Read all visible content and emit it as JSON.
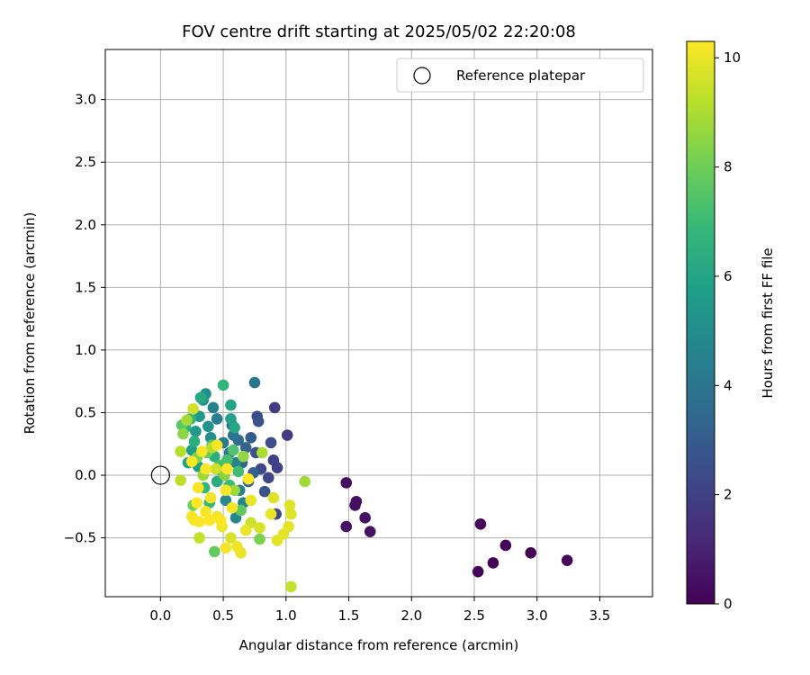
{
  "chart_data": {
    "type": "scatter",
    "title": "FOV centre drift starting at 2025/05/02 22:20:08",
    "xlabel": "Angular distance from reference (arcmin)",
    "ylabel": "Rotation from reference (arcmin)",
    "xlim": [
      -0.44,
      3.92
    ],
    "ylim": [
      -0.97,
      3.4
    ],
    "xticks": [
      0.0,
      0.5,
      1.0,
      1.5,
      2.0,
      2.5,
      3.0,
      3.5
    ],
    "xtick_labels": [
      "0.0",
      "0.5",
      "1.0",
      "1.5",
      "2.0",
      "2.5",
      "3.0",
      "3.5"
    ],
    "yticks": [
      -0.5,
      0.0,
      0.5,
      1.0,
      1.5,
      2.0,
      2.5,
      3.0
    ],
    "ytick_labels": [
      "−0.5",
      "0.0",
      "0.5",
      "1.0",
      "1.5",
      "2.0",
      "2.5",
      "3.0"
    ],
    "grid": true,
    "legend": {
      "position": "top-right",
      "entries": [
        "Reference platepar"
      ]
    },
    "reference_point": {
      "x": 0.0,
      "y": 0.0,
      "label": "Reference platepar"
    },
    "colorbar": {
      "label": "Hours from first FF file",
      "range": [
        0,
        10.3
      ],
      "ticks": [
        0,
        2,
        4,
        6,
        8,
        10
      ],
      "tick_labels": [
        "0",
        "2",
        "4",
        "6",
        "8",
        "10"
      ],
      "colormap": "viridis",
      "colors": [
        "#440154",
        "#482878",
        "#3e4989",
        "#31688e",
        "#26828e",
        "#1f9e89",
        "#35b779",
        "#6ece58",
        "#b5de2b",
        "#fde725"
      ]
    },
    "series": [
      {
        "points": [
          {
            "x": 2.55,
            "y": -0.39,
            "t": 0.1
          },
          {
            "x": 2.75,
            "y": -0.56,
            "t": 0.1
          },
          {
            "x": 2.95,
            "y": -0.62,
            "t": 0.1
          },
          {
            "x": 3.24,
            "y": -0.68,
            "t": 0.1
          },
          {
            "x": 2.65,
            "y": -0.7,
            "t": 0.1
          },
          {
            "x": 2.53,
            "y": -0.77,
            "t": 0.1
          },
          {
            "x": 1.48,
            "y": -0.06,
            "t": 0.4
          },
          {
            "x": 1.56,
            "y": -0.21,
            "t": 0.4
          },
          {
            "x": 1.55,
            "y": -0.24,
            "t": 0.4
          },
          {
            "x": 1.63,
            "y": -0.34,
            "t": 0.5
          },
          {
            "x": 1.48,
            "y": -0.41,
            "t": 0.5
          },
          {
            "x": 1.67,
            "y": -0.45,
            "t": 0.5
          },
          {
            "x": 0.91,
            "y": 0.54,
            "t": 1.8
          },
          {
            "x": 1.01,
            "y": 0.32,
            "t": 1.8
          },
          {
            "x": 0.9,
            "y": 0.12,
            "t": 2.0
          },
          {
            "x": 0.93,
            "y": 0.06,
            "t": 2.0
          },
          {
            "x": 0.86,
            "y": -0.02,
            "t": 2.2
          },
          {
            "x": 0.8,
            "y": 0.05,
            "t": 2.3
          },
          {
            "x": 0.92,
            "y": -0.31,
            "t": 2.3
          },
          {
            "x": 0.88,
            "y": 0.26,
            "t": 2.5
          },
          {
            "x": 0.76,
            "y": 0.18,
            "t": 2.6
          },
          {
            "x": 0.83,
            "y": -0.13,
            "t": 2.7
          },
          {
            "x": 0.77,
            "y": 0.47,
            "t": 2.4
          },
          {
            "x": 0.78,
            "y": 0.43,
            "t": 2.6
          },
          {
            "x": 0.72,
            "y": 0.3,
            "t": 3.0
          },
          {
            "x": 0.68,
            "y": 0.22,
            "t": 3.2
          },
          {
            "x": 0.65,
            "y": 0.1,
            "t": 3.3
          },
          {
            "x": 0.7,
            "y": -0.05,
            "t": 3.4
          },
          {
            "x": 0.74,
            "y": 0.02,
            "t": 3.1
          },
          {
            "x": 0.62,
            "y": 0.28,
            "t": 3.6
          },
          {
            "x": 0.57,
            "y": 0.4,
            "t": 3.8
          },
          {
            "x": 0.75,
            "y": 0.74,
            "t": 4.0
          },
          {
            "x": 0.58,
            "y": 0.32,
            "t": 4.0
          },
          {
            "x": 0.55,
            "y": 0.18,
            "t": 4.2
          },
          {
            "x": 0.5,
            "y": 0.26,
            "t": 4.3
          },
          {
            "x": 0.45,
            "y": 0.45,
            "t": 4.4
          },
          {
            "x": 0.42,
            "y": 0.54,
            "t": 4.5
          },
          {
            "x": 0.6,
            "y": 0.1,
            "t": 4.6
          },
          {
            "x": 0.63,
            "y": -0.12,
            "t": 4.6
          },
          {
            "x": 0.66,
            "y": -0.22,
            "t": 4.7
          },
          {
            "x": 0.6,
            "y": -0.34,
            "t": 4.8
          },
          {
            "x": 0.52,
            "y": -0.2,
            "t": 4.9
          },
          {
            "x": 0.48,
            "y": 0.04,
            "t": 5.0
          },
          {
            "x": 0.4,
            "y": 0.3,
            "t": 5.1
          },
          {
            "x": 0.36,
            "y": 0.65,
            "t": 5.2
          },
          {
            "x": 0.38,
            "y": 0.39,
            "t": 5.3
          },
          {
            "x": 0.34,
            "y": 0.6,
            "t": 5.4
          },
          {
            "x": 0.31,
            "y": 0.47,
            "t": 5.5
          },
          {
            "x": 0.28,
            "y": 0.35,
            "t": 5.6
          },
          {
            "x": 0.25,
            "y": 0.2,
            "t": 5.7
          },
          {
            "x": 0.3,
            "y": 0.07,
            "t": 5.8
          },
          {
            "x": 0.22,
            "y": 0.1,
            "t": 5.9
          },
          {
            "x": 0.56,
            "y": 0.45,
            "t": 5.9
          },
          {
            "x": 0.56,
            "y": 0.56,
            "t": 6.0
          },
          {
            "x": 0.59,
            "y": 0.38,
            "t": 6.1
          },
          {
            "x": 0.32,
            "y": 0.62,
            "t": 6.2
          },
          {
            "x": 0.45,
            "y": -0.05,
            "t": 6.3
          },
          {
            "x": 0.43,
            "y": 0.15,
            "t": 6.4
          },
          {
            "x": 0.27,
            "y": 0.27,
            "t": 6.5
          },
          {
            "x": 0.2,
            "y": 0.38,
            "t": 6.6
          },
          {
            "x": 0.24,
            "y": 0.45,
            "t": 6.7
          },
          {
            "x": 0.5,
            "y": 0.72,
            "t": 6.8
          },
          {
            "x": 0.35,
            "y": -0.1,
            "t": 6.8
          },
          {
            "x": 0.39,
            "y": -0.22,
            "t": 6.9
          },
          {
            "x": 0.55,
            "y": -0.08,
            "t": 7.0
          },
          {
            "x": 0.62,
            "y": 0.03,
            "t": 7.1
          },
          {
            "x": 0.47,
            "y": 0.08,
            "t": 7.2
          },
          {
            "x": 0.53,
            "y": 0.12,
            "t": 7.3
          },
          {
            "x": 0.58,
            "y": 0.2,
            "t": 7.4
          },
          {
            "x": 0.41,
            "y": 0.24,
            "t": 7.5
          },
          {
            "x": 0.17,
            "y": 0.4,
            "t": 7.6
          },
          {
            "x": 0.64,
            "y": -0.28,
            "t": 7.7
          },
          {
            "x": 0.43,
            "y": -0.61,
            "t": 7.8
          },
          {
            "x": 0.37,
            "y": 0.18,
            "t": 7.9
          },
          {
            "x": 0.26,
            "y": -0.24,
            "t": 8.0
          },
          {
            "x": 0.79,
            "y": -0.51,
            "t": 8.2
          },
          {
            "x": 0.29,
            "y": 0.14,
            "t": 8.3
          },
          {
            "x": 0.51,
            "y": 0.0,
            "t": 8.4
          },
          {
            "x": 0.18,
            "y": 0.33,
            "t": 8.5
          },
          {
            "x": 0.66,
            "y": 0.15,
            "t": 8.6
          },
          {
            "x": 0.59,
            "y": -0.12,
            "t": 8.7
          },
          {
            "x": 0.34,
            "y": 0.0,
            "t": 8.8
          },
          {
            "x": 0.21,
            "y": 0.44,
            "t": 8.9
          },
          {
            "x": 1.15,
            "y": -0.05,
            "t": 8.8
          },
          {
            "x": 0.81,
            "y": 0.18,
            "t": 9.0
          },
          {
            "x": 0.41,
            "y": 0.22,
            "t": 9.1
          },
          {
            "x": 0.16,
            "y": 0.19,
            "t": 9.2
          },
          {
            "x": 0.16,
            "y": -0.04,
            "t": 9.3
          },
          {
            "x": 0.31,
            "y": -0.5,
            "t": 9.4
          },
          {
            "x": 1.04,
            "y": -0.89,
            "t": 9.4
          },
          {
            "x": 0.72,
            "y": -0.38,
            "t": 9.5
          },
          {
            "x": 0.44,
            "y": 0.05,
            "t": 9.6
          },
          {
            "x": 0.26,
            "y": 0.53,
            "t": 9.6
          },
          {
            "x": 0.56,
            "y": -0.5,
            "t": 9.7
          },
          {
            "x": 0.79,
            "y": -0.42,
            "t": 9.7
          },
          {
            "x": 0.9,
            "y": -0.18,
            "t": 9.8
          },
          {
            "x": 1.03,
            "y": -0.24,
            "t": 9.8
          },
          {
            "x": 1.04,
            "y": -0.31,
            "t": 9.8
          },
          {
            "x": 1.02,
            "y": -0.41,
            "t": 9.9
          },
          {
            "x": 0.98,
            "y": -0.47,
            "t": 9.9
          },
          {
            "x": 0.93,
            "y": -0.52,
            "t": 9.9
          },
          {
            "x": 0.88,
            "y": -0.31,
            "t": 10.0
          },
          {
            "x": 0.72,
            "y": -0.2,
            "t": 10.0
          },
          {
            "x": 0.68,
            "y": -0.44,
            "t": 10.0
          },
          {
            "x": 0.64,
            "y": -0.62,
            "t": 10.0
          },
          {
            "x": 0.61,
            "y": -0.57,
            "t": 10.1
          },
          {
            "x": 0.52,
            "y": -0.58,
            "t": 10.1
          },
          {
            "x": 0.49,
            "y": -0.41,
            "t": 10.1
          },
          {
            "x": 0.45,
            "y": -0.33,
            "t": 10.1
          },
          {
            "x": 0.4,
            "y": -0.18,
            "t": 10.1
          },
          {
            "x": 0.36,
            "y": -0.29,
            "t": 10.2
          },
          {
            "x": 0.31,
            "y": -0.37,
            "t": 10.2
          },
          {
            "x": 0.27,
            "y": -0.36,
            "t": 10.2
          },
          {
            "x": 0.25,
            "y": -0.33,
            "t": 10.2
          },
          {
            "x": 0.3,
            "y": -0.1,
            "t": 10.2
          },
          {
            "x": 0.36,
            "y": 0.05,
            "t": 10.2
          },
          {
            "x": 0.33,
            "y": 0.19,
            "t": 10.2
          },
          {
            "x": 0.45,
            "y": 0.24,
            "t": 10.2
          },
          {
            "x": 0.52,
            "y": -0.12,
            "t": 10.2
          },
          {
            "x": 0.57,
            "y": -0.26,
            "t": 10.2
          },
          {
            "x": 0.7,
            "y": -0.03,
            "t": 10.3
          },
          {
            "x": 0.48,
            "y": -0.36,
            "t": 10.3
          },
          {
            "x": 0.39,
            "y": -0.36,
            "t": 10.3
          },
          {
            "x": 0.29,
            "y": -0.22,
            "t": 10.3
          },
          {
            "x": 0.25,
            "y": 0.11,
            "t": 10.3
          },
          {
            "x": 0.53,
            "y": 0.05,
            "t": 10.3
          }
        ]
      }
    ]
  }
}
